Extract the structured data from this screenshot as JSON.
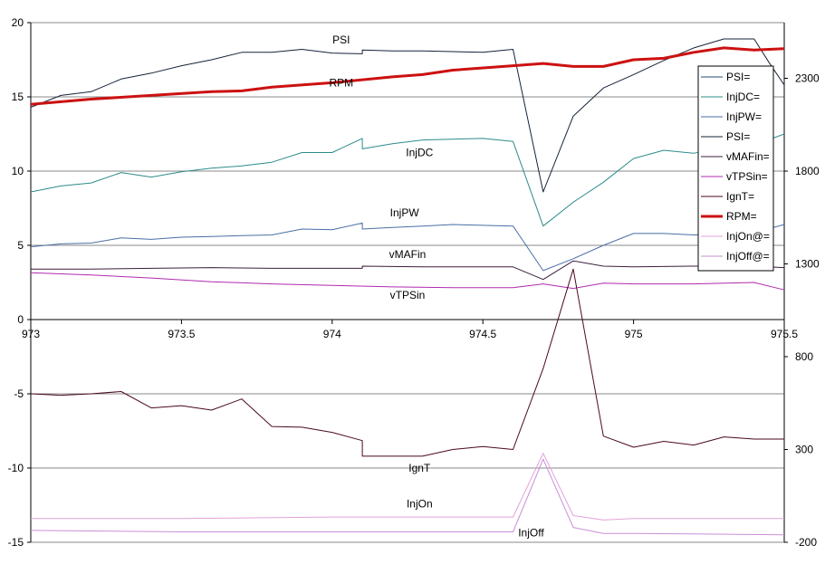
{
  "chart_data": {
    "type": "line",
    "x_axis": {
      "min": 973,
      "max": 975.5,
      "ticks": [
        "973",
        "973.5",
        "974",
        "974.5",
        "975",
        "975.5"
      ]
    },
    "y_left": {
      "min": -15,
      "max": 20,
      "ticks": [
        "20",
        "15",
        "10",
        "5",
        "0",
        "-5",
        "-10",
        "-15"
      ]
    },
    "y_right": {
      "min": -200,
      "max": 2600,
      "ticks": [
        "2300",
        "1800",
        "1300",
        "800",
        "300",
        "-200"
      ],
      "tick_values": [
        2300,
        1800,
        1300,
        800,
        300,
        -200
      ]
    },
    "grid": true,
    "legend_position": "right",
    "series": [
      {
        "name": "PSI=",
        "color": "#1f4e79",
        "width": 1,
        "axis": "left",
        "x": [],
        "y": []
      },
      {
        "name": "InjDC=",
        "color": "#2e8b8b",
        "width": 1,
        "axis": "left",
        "x": [
          973,
          973.1,
          973.2,
          973.3,
          973.4,
          973.5,
          973.6,
          973.7,
          973.8,
          973.9,
          974,
          974.1,
          974.1,
          974.2,
          974.3,
          974.4,
          974.5,
          974.6,
          974.7,
          974.8,
          974.9,
          975,
          975.1,
          975.2,
          975.3,
          975.4,
          975.5
        ],
        "y": [
          8.6,
          9.0,
          9.2,
          9.9,
          9.6,
          9.95,
          10.2,
          10.35,
          10.6,
          11.25,
          11.25,
          12.2,
          11.5,
          11.85,
          12.1,
          12.15,
          12.2,
          12.0,
          6.3,
          7.9,
          9.25,
          10.85,
          11.4,
          11.2,
          11.7,
          11.75,
          12.5
        ]
      },
      {
        "name": "InjPW=",
        "color": "#4a6fa5",
        "width": 1,
        "axis": "left",
        "x": [
          973,
          973.1,
          973.2,
          973.3,
          973.4,
          973.5,
          973.6,
          973.7,
          973.8,
          973.9,
          974,
          974.1,
          974.1,
          974.2,
          974.3,
          974.4,
          974.5,
          974.6,
          974.7,
          974.8,
          974.9,
          975,
          975.1,
          975.2,
          975.3,
          975.4,
          975.5
        ],
        "y": [
          4.9,
          5.1,
          5.15,
          5.5,
          5.4,
          5.55,
          5.6,
          5.65,
          5.7,
          6.1,
          6.05,
          6.5,
          6.1,
          6.2,
          6.3,
          6.4,
          6.35,
          6.3,
          3.3,
          4.1,
          5.0,
          5.8,
          5.8,
          5.7,
          5.75,
          5.85,
          6.4
        ]
      },
      {
        "name": "PSI=",
        "color": "#14233a",
        "width": 1,
        "axis": "left",
        "x": [
          973,
          973.1,
          973.2,
          973.3,
          973.4,
          973.5,
          973.6,
          973.7,
          973.8,
          973.9,
          974,
          974.1,
          974.1,
          974.2,
          974.3,
          974.4,
          974.5,
          974.6,
          974.7,
          974.8,
          974.9,
          975,
          975.1,
          975.2,
          975.3,
          975.4,
          975.45,
          975.5
        ],
        "y": [
          14.3,
          15.1,
          15.35,
          16.2,
          16.6,
          17.1,
          17.5,
          18.0,
          18.0,
          18.2,
          17.95,
          17.9,
          18.15,
          18.1,
          18.1,
          18.05,
          18.0,
          18.2,
          8.6,
          13.7,
          15.6,
          16.5,
          17.45,
          18.3,
          18.9,
          18.9,
          17.3,
          15.8
        ]
      },
      {
        "name": "vMAFin=",
        "color": "#3b1f3b",
        "width": 1,
        "axis": "left",
        "x": [
          973,
          973.2,
          973.4,
          973.6,
          973.8,
          974,
          974.1,
          974.1,
          974.3,
          974.5,
          974.6,
          974.7,
          974.8,
          974.9,
          975,
          975.2,
          975.4,
          975.5
        ],
        "y": [
          3.4,
          3.4,
          3.45,
          3.5,
          3.45,
          3.45,
          3.45,
          3.6,
          3.55,
          3.55,
          3.55,
          2.7,
          3.95,
          3.6,
          3.55,
          3.6,
          3.6,
          3.5
        ]
      },
      {
        "name": "vTPSin=",
        "color": "#b02ab0",
        "width": 1,
        "axis": "left",
        "x": [
          973,
          973.2,
          973.4,
          973.6,
          973.8,
          974,
          974.2,
          974.4,
          974.6,
          974.7,
          974.8,
          974.9,
          975,
          975.2,
          975.4,
          975.5
        ],
        "y": [
          3.15,
          3.0,
          2.8,
          2.55,
          2.4,
          2.3,
          2.2,
          2.15,
          2.15,
          2.4,
          2.1,
          2.45,
          2.4,
          2.4,
          2.5,
          2.0
        ]
      },
      {
        "name": "IgnT=",
        "color": "#4a0a1a",
        "width": 1,
        "axis": "left",
        "x": [
          973,
          973.1,
          973.2,
          973.3,
          973.4,
          973.5,
          973.6,
          973.7,
          973.8,
          973.9,
          974,
          974.1,
          974.1,
          974.2,
          974.3,
          974.4,
          974.5,
          974.6,
          974.7,
          974.8,
          974.9,
          975,
          975.1,
          975.2,
          975.3,
          975.4,
          975.5
        ],
        "y": [
          -5.0,
          -5.1,
          -5.0,
          -4.85,
          -5.95,
          -5.8,
          -6.1,
          -5.35,
          -7.2,
          -7.25,
          -7.6,
          -8.15,
          -9.2,
          -9.2,
          -9.2,
          -8.75,
          -8.55,
          -8.75,
          -3.3,
          3.4,
          -7.85,
          -8.6,
          -8.2,
          -8.45,
          -7.9,
          -8.05,
          -8.05
        ]
      },
      {
        "name": "RPM=",
        "color": "#cc1111",
        "width": 3,
        "axis": "left",
        "x": [
          973,
          973.2,
          973.4,
          973.6,
          973.7,
          973.8,
          974,
          974.2,
          974.3,
          974.4,
          974.6,
          974.7,
          974.8,
          974.9,
          975,
          975.1,
          975.2,
          975.3,
          975.4,
          975.5
        ],
        "y": [
          14.5,
          14.85,
          15.1,
          15.35,
          15.4,
          15.65,
          15.95,
          16.35,
          16.5,
          16.8,
          17.1,
          17.25,
          17.05,
          17.05,
          17.5,
          17.6,
          18.0,
          18.3,
          18.15,
          18.25
        ]
      },
      {
        "name": "InjOn@=",
        "color": "#e3a2d9",
        "width": 1,
        "axis": "left",
        "x": [
          973,
          973.5,
          974,
          974.5,
          974.6,
          974.7,
          974.8,
          974.9,
          975,
          975.5
        ],
        "y": [
          -13.4,
          -13.4,
          -13.3,
          -13.3,
          -13.3,
          -9.0,
          -13.2,
          -13.5,
          -13.4,
          -13.4
        ]
      },
      {
        "name": "InjOff@=",
        "color": "#c98fd6",
        "width": 1,
        "axis": "left",
        "x": [
          973,
          973.5,
          974,
          974.5,
          974.6,
          974.7,
          974.8,
          974.9,
          975,
          975.5
        ],
        "y": [
          -14.2,
          -14.3,
          -14.3,
          -14.3,
          -14.3,
          -9.4,
          -14.0,
          -14.4,
          -14.4,
          -14.5
        ]
      }
    ],
    "annotations": [
      {
        "text": "PSI",
        "x": 974.03,
        "y": 18.6
      },
      {
        "text": "RPM",
        "x": 974.03,
        "y": 15.7
      },
      {
        "text": "InjDC",
        "x": 974.29,
        "y": 11.0
      },
      {
        "text": "InjPW",
        "x": 974.24,
        "y": 6.95
      },
      {
        "text": "vMAFin",
        "x": 974.25,
        "y": 4.15
      },
      {
        "text": "vTPSin",
        "x": 974.25,
        "y": 1.4
      },
      {
        "text": "IgnT",
        "x": 974.29,
        "y": -10.25
      },
      {
        "text": "InjOn",
        "x": 974.29,
        "y": -12.65
      },
      {
        "text": "InjOff",
        "x": 974.66,
        "y": -14.6
      }
    ]
  }
}
